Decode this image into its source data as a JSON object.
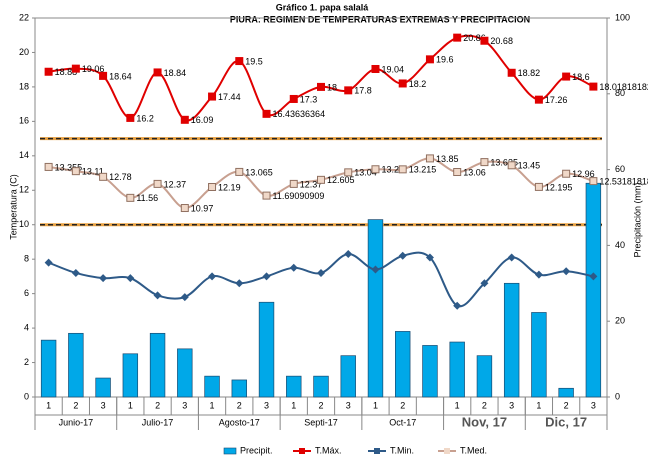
{
  "chart_data": {
    "type": "combo",
    "title": "Gráfico 1. papa salalá",
    "subtitle": "PIURA: REGIMEN DE TEMPERATURAS EXTREMAS Y PRECIPITACION",
    "y_label": "Temperatura (C)",
    "y2_label": "Precipitación (mm)",
    "categories": [
      "1",
      "2",
      "3",
      "1",
      "2",
      "3",
      "1",
      "2",
      "3",
      "1",
      "2",
      "3",
      "1",
      "2",
      null,
      "1",
      "2",
      "3",
      "1",
      "2",
      "3"
    ],
    "category_groups": [
      {
        "label": "Junio-17",
        "size": 3
      },
      {
        "label": "Julio-17",
        "size": 3
      },
      {
        "label": "Agosto-17",
        "size": 3
      },
      {
        "label": "Septi-17",
        "size": 3
      },
      {
        "label": "Oct-17",
        "size": 3
      },
      {
        "label": "Nov, 17",
        "size": 3
      },
      {
        "label": "Dic, 17",
        "size": 3
      }
    ],
    "ylim": [
      0,
      22
    ],
    "yticks": [
      0,
      2,
      4,
      6,
      8,
      10,
      12,
      14,
      16,
      18,
      20,
      22
    ],
    "y2lim": [
      0,
      100
    ],
    "y2ticks": [
      0,
      20,
      40,
      60,
      80,
      100
    ],
    "reference_lines": [
      15,
      10
    ],
    "series": [
      {
        "name": "Precipit.",
        "type": "bar",
        "axis": "y2",
        "color": "#00a8e8",
        "values": [
          15,
          16.8,
          5,
          11.4,
          16.8,
          12.7,
          5.5,
          4.5,
          25,
          5.5,
          5.5,
          10.9,
          46.8,
          17.3,
          13.6,
          14.5,
          10.9,
          30,
          22.3,
          2.3,
          56.4
        ]
      },
      {
        "name": "T.Máx.",
        "type": "line",
        "color": "#e00000",
        "labels": true,
        "values": [
          18.88,
          19.06,
          18.64,
          16.2,
          18.84,
          16.09,
          17.44,
          19.5,
          16.43636364,
          17.3,
          18,
          17.8,
          19.04,
          18.2,
          19.6,
          20.86,
          20.68,
          18.82,
          17.26,
          18.6,
          18.01818182
        ]
      },
      {
        "name": "T.Min.",
        "type": "line",
        "color": "#2e5a88",
        "labels": false,
        "values": [
          7.8,
          7.2,
          6.9,
          6.9,
          5.9,
          5.8,
          7.0,
          6.6,
          7.0,
          7.5,
          7.2,
          8.3,
          7.4,
          8.2,
          8.1,
          5.3,
          6.6,
          8.1,
          7.1,
          7.3,
          7.0
        ]
      },
      {
        "name": "T.Med.",
        "type": "line",
        "color": "#c8a090",
        "labels": true,
        "values": [
          13.355,
          13.11,
          12.78,
          11.56,
          12.37,
          10.97,
          12.19,
          13.065,
          11.69090909,
          12.37,
          12.605,
          13.04,
          13.22,
          13.215,
          13.85,
          13.06,
          13.635,
          13.45,
          12.195,
          12.96,
          12.53181818
        ]
      }
    ]
  }
}
